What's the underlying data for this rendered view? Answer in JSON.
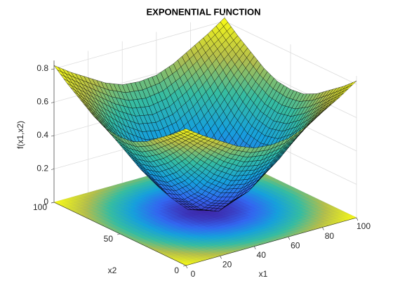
{
  "chart_data": {
    "type": "surface",
    "title": "EXPONENTIAL FUNCTION",
    "xlabel": "x1",
    "ylabel": "x2",
    "zlabel": "f(x1,x2)",
    "x1": [
      0,
      10,
      20,
      30,
      40,
      50,
      60,
      70,
      80,
      90,
      100
    ],
    "x2": [
      0,
      10,
      20,
      30,
      40,
      50,
      60,
      70,
      80,
      90,
      100
    ],
    "z": [
      [
        0.82,
        0.75,
        0.69,
        0.63,
        0.59,
        0.58,
        0.59,
        0.63,
        0.69,
        0.75,
        0.82
      ],
      [
        0.75,
        0.67,
        0.58,
        0.5,
        0.44,
        0.42,
        0.44,
        0.5,
        0.58,
        0.67,
        0.75
      ],
      [
        0.69,
        0.58,
        0.46,
        0.36,
        0.29,
        0.27,
        0.29,
        0.36,
        0.46,
        0.58,
        0.69
      ],
      [
        0.63,
        0.5,
        0.36,
        0.24,
        0.16,
        0.13,
        0.16,
        0.24,
        0.36,
        0.5,
        0.63
      ],
      [
        0.59,
        0.44,
        0.29,
        0.16,
        0.07,
        0.03,
        0.07,
        0.16,
        0.29,
        0.44,
        0.59
      ],
      [
        0.58,
        0.42,
        0.27,
        0.13,
        0.03,
        0.0,
        0.03,
        0.13,
        0.27,
        0.42,
        0.58
      ],
      [
        0.59,
        0.44,
        0.29,
        0.16,
        0.07,
        0.03,
        0.07,
        0.16,
        0.29,
        0.44,
        0.59
      ],
      [
        0.63,
        0.5,
        0.36,
        0.24,
        0.16,
        0.13,
        0.16,
        0.24,
        0.36,
        0.5,
        0.63
      ],
      [
        0.69,
        0.58,
        0.46,
        0.36,
        0.29,
        0.27,
        0.29,
        0.36,
        0.46,
        0.58,
        0.69
      ],
      [
        0.75,
        0.67,
        0.58,
        0.5,
        0.44,
        0.42,
        0.44,
        0.5,
        0.58,
        0.67,
        0.75
      ],
      [
        0.82,
        0.75,
        0.69,
        0.63,
        0.59,
        0.58,
        0.59,
        0.63,
        0.69,
        0.75,
        0.82
      ]
    ],
    "xlim": [
      0,
      100
    ],
    "ylim": [
      0,
      100
    ],
    "zlim": [
      0,
      0.85
    ],
    "xticks": [
      0,
      20,
      40,
      60,
      80,
      100
    ],
    "yticks": [
      0,
      50,
      100
    ],
    "zticks": [
      0,
      0.2,
      0.4,
      0.6,
      0.8
    ],
    "grid": true,
    "floor_projection": true,
    "colormap": [
      "#3e26a8",
      "#3366f0",
      "#16a0dc",
      "#35bca2",
      "#b3bd4c",
      "#f9fb15"
    ]
  }
}
